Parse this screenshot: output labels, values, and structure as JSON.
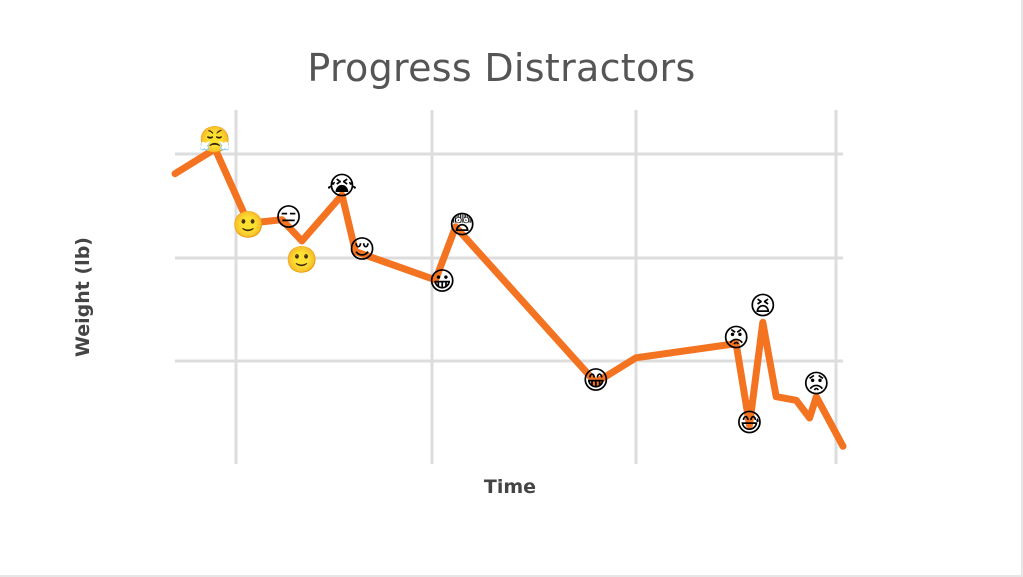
{
  "chart_data": {
    "type": "line",
    "title": "Progress Distractors",
    "xlabel": "Time",
    "ylabel": "Weight (lb)",
    "xlim": [
      0,
      100
    ],
    "ylim": [
      0,
      100
    ],
    "grid": true,
    "line_color": "#f47321",
    "series": [
      {
        "values": [
          {
            "x": 0,
            "y": 82
          },
          {
            "x": 6,
            "y": 89
          },
          {
            "x": 11,
            "y": 68
          },
          {
            "x": 16,
            "y": 69
          },
          {
            "x": 19,
            "y": 63
          },
          {
            "x": 25,
            "y": 76
          },
          {
            "x": 27,
            "y": 60
          },
          {
            "x": 39,
            "y": 52
          },
          {
            "x": 42,
            "y": 67
          },
          {
            "x": 63,
            "y": 23
          },
          {
            "x": 69,
            "y": 30
          },
          {
            "x": 84,
            "y": 34
          },
          {
            "x": 86,
            "y": 11
          },
          {
            "x": 88,
            "y": 40
          },
          {
            "x": 90,
            "y": 19
          },
          {
            "x": 93,
            "y": 18
          },
          {
            "x": 95,
            "y": 13
          },
          {
            "x": 96,
            "y": 19
          },
          {
            "x": 100,
            "y": 5
          }
        ]
      }
    ],
    "annotations": [
      {
        "x": 6,
        "y": 92,
        "emoji": "😤",
        "name": "annoyed-face-icon"
      },
      {
        "x": 11,
        "y": 68,
        "emoji": "🙂",
        "name": "slight-smile-face-icon"
      },
      {
        "x": 17,
        "y": 70,
        "emoji": "😑",
        "name": "expressionless-face-icon"
      },
      {
        "x": 19,
        "y": 58,
        "emoji": "🙂",
        "name": "slight-smile-face-icon"
      },
      {
        "x": 25,
        "y": 79,
        "emoji": "😭",
        "name": "crying-face-icon"
      },
      {
        "x": 28,
        "y": 61,
        "emoji": "😌",
        "name": "relieved-face-icon"
      },
      {
        "x": 40,
        "y": 52,
        "emoji": "😀",
        "name": "grinning-face-icon"
      },
      {
        "x": 43,
        "y": 68,
        "emoji": "😨",
        "name": "fearful-face-icon"
      },
      {
        "x": 63,
        "y": 24,
        "emoji": "😁",
        "name": "beaming-face-icon"
      },
      {
        "x": 84,
        "y": 36,
        "emoji": "😡",
        "name": "angry-face-icon"
      },
      {
        "x": 86,
        "y": 12,
        "emoji": "😅",
        "name": "sweat-smile-face-icon"
      },
      {
        "x": 88,
        "y": 45,
        "emoji": "😫",
        "name": "tired-face-icon"
      },
      {
        "x": 96,
        "y": 23,
        "emoji": "😟",
        "name": "worried-face-icon"
      }
    ]
  }
}
